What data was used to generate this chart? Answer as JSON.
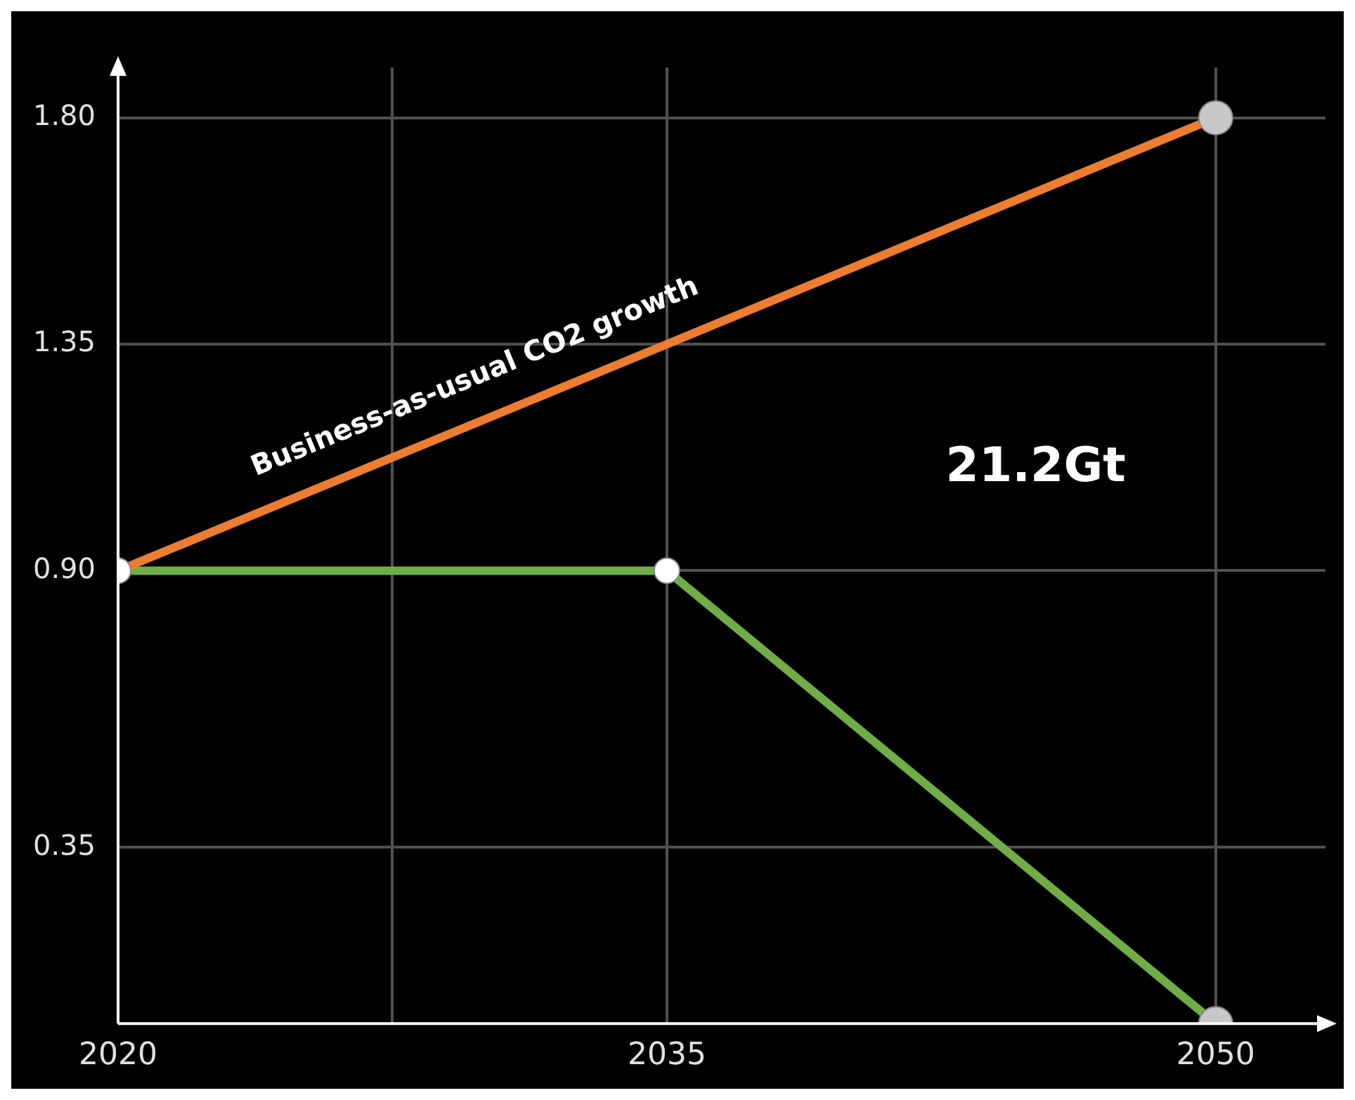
{
  "chart_data": {
    "type": "line",
    "x": [
      2020,
      2035,
      2050
    ],
    "series": [
      {
        "color": "#ed7d31",
        "x": [
          2020,
          2050
        ],
        "values": [
          0.9,
          1.8
        ]
      },
      {
        "color": "#70ad47",
        "values": [
          0.9,
          0.9,
          0
        ]
      }
    ],
    "xlim": [
      2020,
      2053
    ],
    "xticks": [
      2020,
      {
        "value": 2027.5,
        "label": null
      },
      2035,
      2050
    ],
    "ylim": [
      0,
      1.9
    ],
    "yticks": [
      0.35,
      {
        "value": 0.9,
        "label": "0.90"
      },
      1.35,
      {
        "value": 1.8,
        "label": "1.80"
      }
    ],
    "grid": true,
    "marker": "circle",
    "line_style": "solid",
    "annotations": [
      "Business-as-usual CO2 growth",
      "21.2Gt"
    ]
  }
}
